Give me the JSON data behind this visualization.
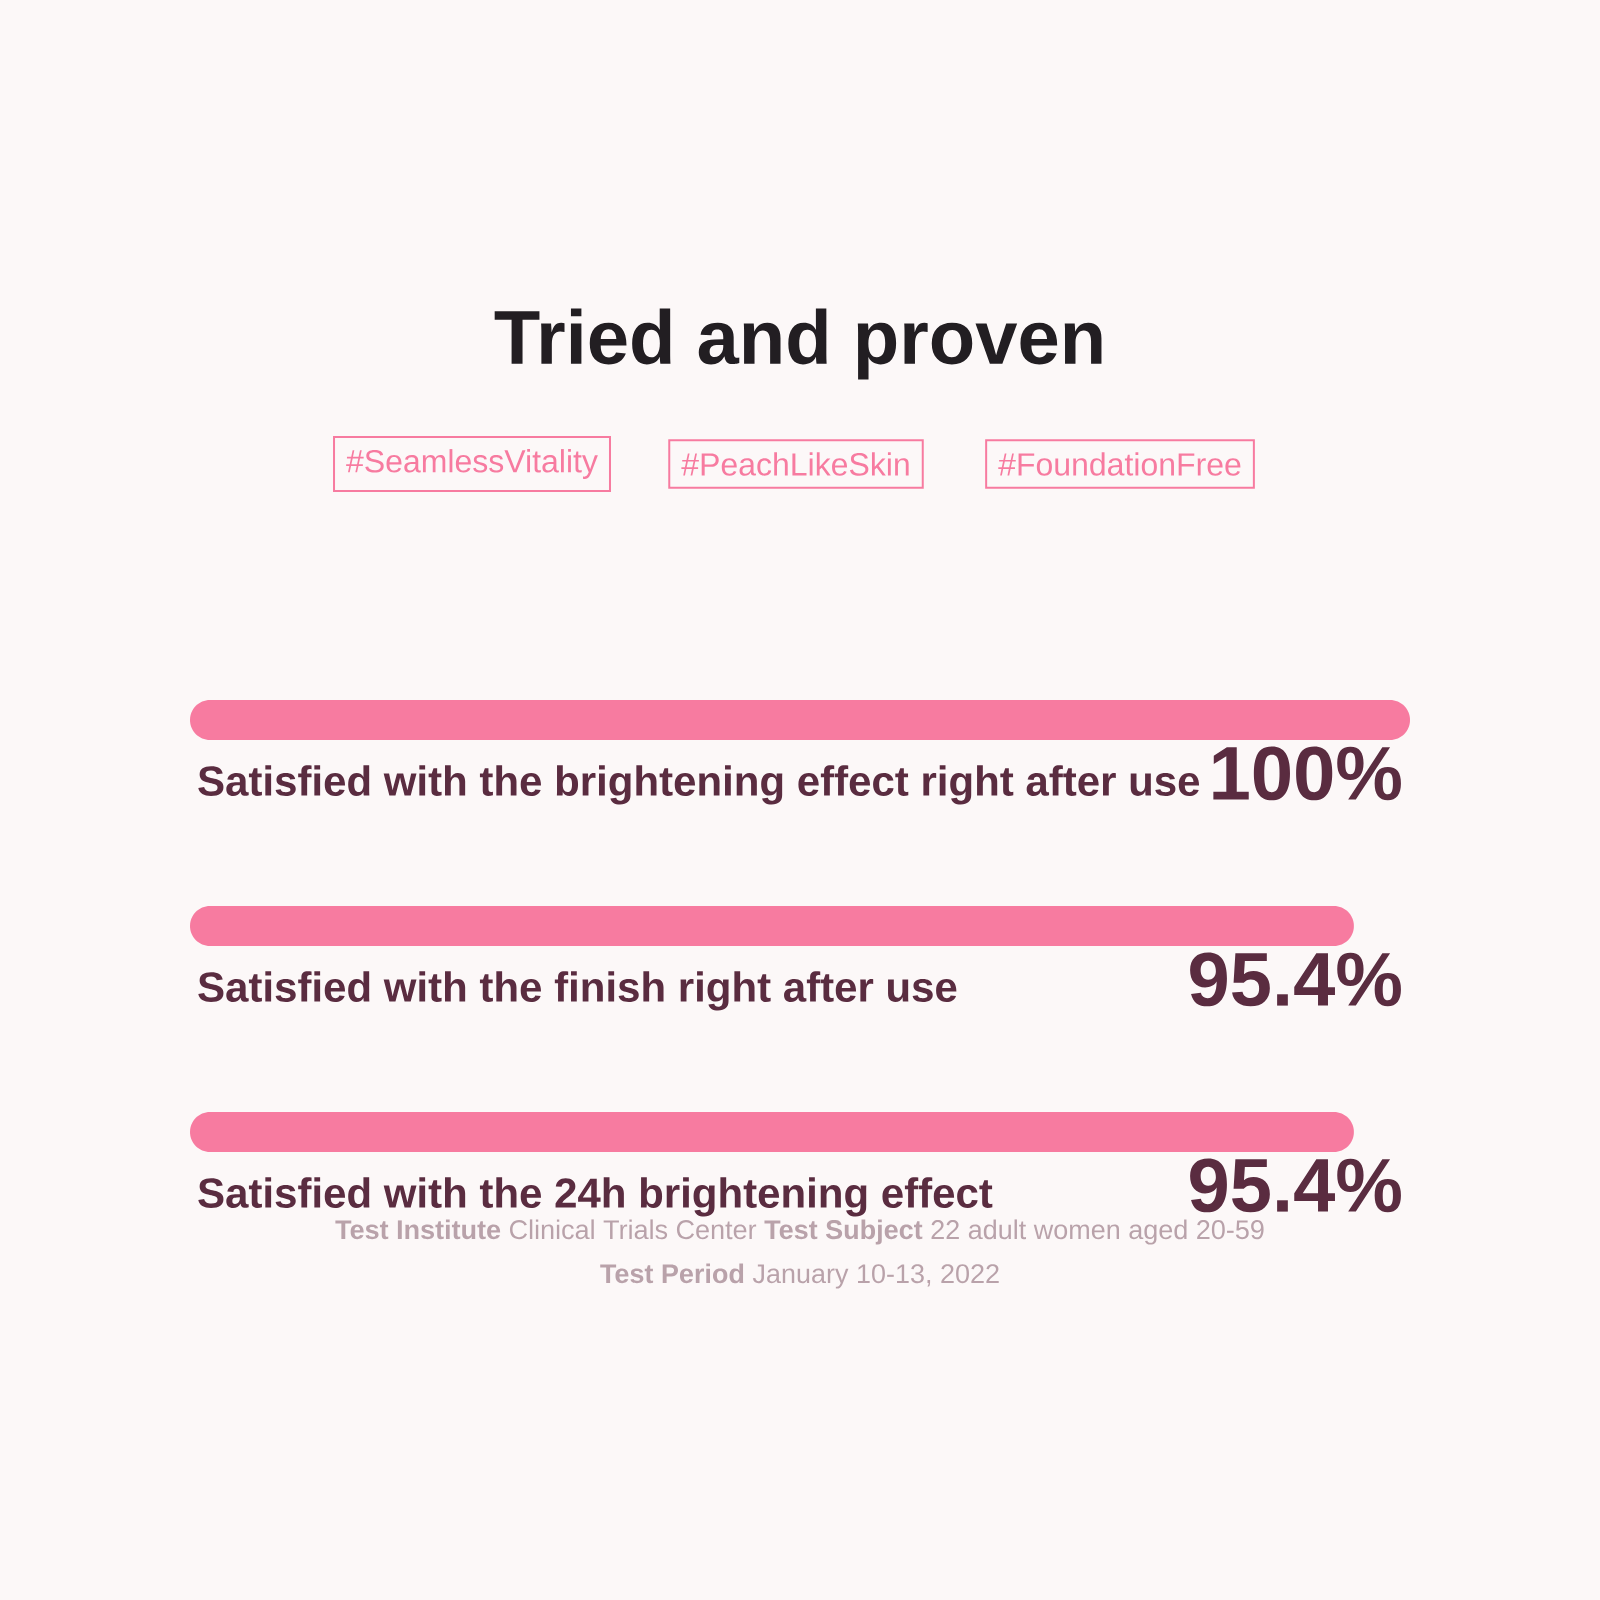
{
  "chart_data": {
    "type": "bar",
    "orientation": "horizontal",
    "title": "Tried and proven",
    "categories": [
      "Satisfied with the brightening effect right after use",
      "Satisfied with the finish right after use",
      "Satisfied with the 24h brightening effect"
    ],
    "values": [
      100,
      95.4,
      95.4
    ],
    "value_labels": [
      "100%",
      "95.4%",
      "95.4%"
    ],
    "color": "#f77ba0",
    "xlim": [
      0,
      100
    ],
    "annotations": [
      "#SeamlessVitality",
      "#PeachLikeSkin",
      "#FoundationFree",
      "**Test Institute** Clinical Trials Center **Test Subject** 22 adult women aged 20-59",
      "**Test Period** January 10-13, 2022"
    ]
  }
}
